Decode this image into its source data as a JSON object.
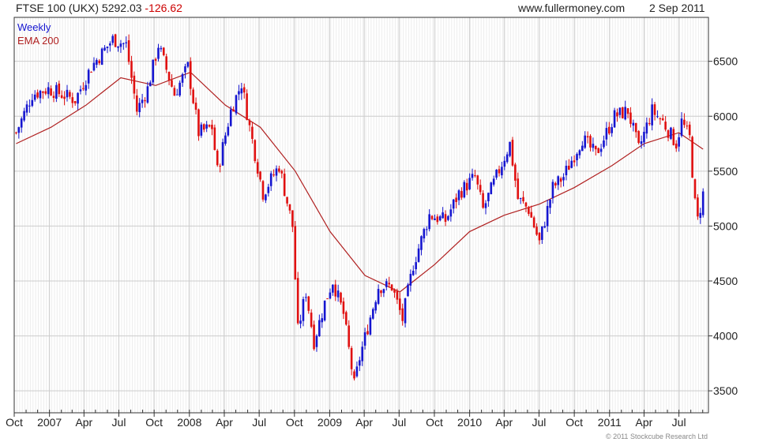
{
  "header": {
    "instrument": "FTSE 100 (UKX)",
    "last": "5292.03",
    "change": "-126.62",
    "site": "www.fullermoney.com",
    "date": "2 Sep 2011"
  },
  "copyright": "© 2011 Stockcube Research Ltd",
  "colors": {
    "up": "#1515d0",
    "down": "#e01010",
    "ema": "#b02020",
    "grid": "#cccccc",
    "axis": "#333333",
    "change": "#cc0000"
  },
  "chart_data": {
    "type": "line",
    "subtype": "weekly-candlestick-with-ema",
    "legend": [
      {
        "name": "Weekly",
        "color": "#1515d0"
      },
      {
        "name": "EMA 200",
        "color": "#b02020"
      }
    ],
    "legend_position": "top-left",
    "grid": true,
    "y_axis_position": "right",
    "ylim": [
      3300,
      6900
    ],
    "yticks": [
      3500,
      4000,
      4500,
      5000,
      5500,
      6000,
      6500
    ],
    "xlim": [
      "2006-10-01",
      "2011-09-16"
    ],
    "xticks": [
      {
        "label": "Oct",
        "date": "2006-10-01"
      },
      {
        "label": "2007",
        "date": "2007-01-01"
      },
      {
        "label": "Apr",
        "date": "2007-04-01"
      },
      {
        "label": "Jul",
        "date": "2007-07-01"
      },
      {
        "label": "Oct",
        "date": "2007-10-01"
      },
      {
        "label": "2008",
        "date": "2008-01-01"
      },
      {
        "label": "Apr",
        "date": "2008-04-01"
      },
      {
        "label": "Jul",
        "date": "2008-07-01"
      },
      {
        "label": "Oct",
        "date": "2008-10-01"
      },
      {
        "label": "2009",
        "date": "2009-01-01"
      },
      {
        "label": "Apr",
        "date": "2009-04-01"
      },
      {
        "label": "Jul",
        "date": "2009-07-01"
      },
      {
        "label": "Oct",
        "date": "2009-10-01"
      },
      {
        "label": "2010",
        "date": "2010-01-01"
      },
      {
        "label": "Apr",
        "date": "2010-04-01"
      },
      {
        "label": "Jul",
        "date": "2010-07-01"
      },
      {
        "label": "Oct",
        "date": "2010-10-01"
      },
      {
        "label": "2011",
        "date": "2011-01-01"
      },
      {
        "label": "Apr",
        "date": "2011-04-01"
      },
      {
        "label": "Jul",
        "date": "2011-07-01"
      }
    ],
    "price_path": [
      [
        "2006-10-06",
        5850
      ],
      [
        "2006-11-17",
        6200
      ],
      [
        "2006-12-29",
        6250
      ],
      [
        "2007-03-09",
        6150
      ],
      [
        "2007-04-20",
        6450
      ],
      [
        "2007-06-15",
        6700
      ],
      [
        "2007-07-20",
        6650
      ],
      [
        "2007-08-17",
        6050
      ],
      [
        "2007-09-14",
        6250
      ],
      [
        "2007-10-12",
        6650
      ],
      [
        "2007-11-23",
        6200
      ],
      [
        "2007-12-28",
        6450
      ],
      [
        "2008-01-25",
        5850
      ],
      [
        "2008-02-29",
        5900
      ],
      [
        "2008-03-14",
        5500
      ],
      [
        "2008-04-18",
        6050
      ],
      [
        "2008-05-16",
        6300
      ],
      [
        "2008-06-06",
        5900
      ],
      [
        "2008-07-11",
        5300
      ],
      [
        "2008-08-22",
        5550
      ],
      [
        "2008-09-26",
        5000
      ],
      [
        "2008-10-10",
        4050
      ],
      [
        "2008-10-31",
        4400
      ],
      [
        "2008-11-21",
        3950
      ],
      [
        "2008-12-19",
        4300
      ],
      [
        "2009-01-09",
        4500
      ],
      [
        "2009-02-06",
        4200
      ],
      [
        "2009-03-06",
        3550
      ],
      [
        "2009-03-20",
        3800
      ],
      [
        "2009-05-08",
        4450
      ],
      [
        "2009-06-12",
        4450
      ],
      [
        "2009-07-10",
        4150
      ],
      [
        "2009-08-07",
        4650
      ],
      [
        "2009-09-18",
        5100
      ],
      [
        "2009-10-30",
        5050
      ],
      [
        "2009-12-04",
        5300
      ],
      [
        "2010-01-15",
        5450
      ],
      [
        "2010-02-05",
        5150
      ],
      [
        "2010-04-16",
        5750
      ],
      [
        "2010-05-07",
        5250
      ],
      [
        "2010-06-04",
        5150
      ],
      [
        "2010-07-02",
        4850
      ],
      [
        "2010-08-06",
        5350
      ],
      [
        "2010-09-03",
        5450
      ],
      [
        "2010-10-22",
        5800
      ],
      [
        "2010-11-26",
        5650
      ],
      [
        "2011-01-14",
        6000
      ],
      [
        "2011-02-18",
        6050
      ],
      [
        "2011-03-18",
        5700
      ],
      [
        "2011-04-22",
        6050
      ],
      [
        "2011-05-20",
        5950
      ],
      [
        "2011-06-24",
        5750
      ],
      [
        "2011-07-08",
        5950
      ],
      [
        "2011-07-29",
        5800
      ],
      [
        "2011-08-12",
        5200
      ],
      [
        "2011-08-19",
        5050
      ],
      [
        "2011-09-02",
        5292
      ]
    ],
    "ema_200": [
      [
        "2006-10-06",
        5750
      ],
      [
        "2007-01-05",
        5900
      ],
      [
        "2007-04-06",
        6100
      ],
      [
        "2007-07-06",
        6350
      ],
      [
        "2007-10-05",
        6280
      ],
      [
        "2008-01-04",
        6400
      ],
      [
        "2008-04-04",
        6100
      ],
      [
        "2008-07-04",
        5900
      ],
      [
        "2008-10-03",
        5500
      ],
      [
        "2009-01-02",
        4950
      ],
      [
        "2009-04-03",
        4550
      ],
      [
        "2009-07-03",
        4400
      ],
      [
        "2009-10-02",
        4650
      ],
      [
        "2010-01-01",
        4950
      ],
      [
        "2010-04-02",
        5100
      ],
      [
        "2010-07-02",
        5200
      ],
      [
        "2010-10-01",
        5350
      ],
      [
        "2011-01-07",
        5550
      ],
      [
        "2011-04-01",
        5750
      ],
      [
        "2011-07-01",
        5850
      ],
      [
        "2011-09-02",
        5700
      ]
    ]
  }
}
